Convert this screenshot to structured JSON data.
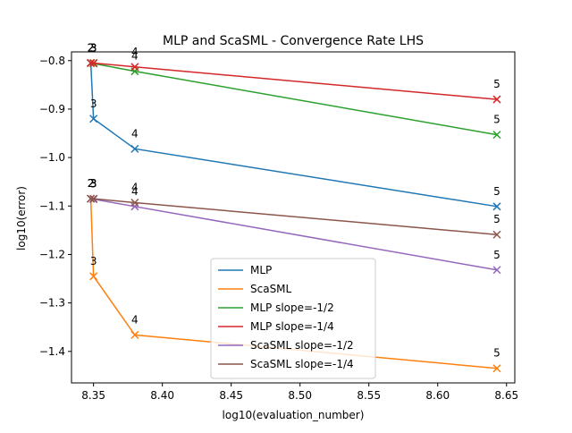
{
  "chart_data": {
    "type": "line",
    "title": "MLP and ScaSML - Convergence Rate LHS",
    "xlabel": "log10(evaluation_number)",
    "ylabel": "log10(error)",
    "xlim": [
      8.334,
      8.656
    ],
    "ylim": [
      -1.465,
      -0.782
    ],
    "xticks": [
      8.35,
      8.4,
      8.45,
      8.5,
      8.55,
      8.6,
      8.65
    ],
    "xtick_labels": [
      "8.35",
      "8.40",
      "8.45",
      "8.50",
      "8.55",
      "8.60",
      "8.65"
    ],
    "yticks": [
      -0.8,
      -0.9,
      -1.0,
      -1.1,
      -1.2,
      -1.3,
      -1.4
    ],
    "ytick_labels": [
      "−0.8",
      "−0.9",
      "−1.0",
      "−1.1",
      "−1.2",
      "−1.3",
      "−1.4"
    ],
    "grid": false,
    "legend_position": "bottom-center",
    "series": [
      {
        "name": "MLP",
        "color": "#1f77b4",
        "x": [
          8.348,
          8.35,
          8.38,
          8.643
        ],
        "y": [
          -0.805,
          -0.92,
          -0.982,
          -1.101
        ],
        "point_labels": [
          "2",
          "3",
          "4",
          "5"
        ]
      },
      {
        "name": "ScaSML",
        "color": "#ff7f0e",
        "x": [
          8.348,
          8.35,
          8.38,
          8.643
        ],
        "y": [
          -1.085,
          -1.245,
          -1.366,
          -1.435
        ],
        "point_labels": [
          "2",
          "3",
          "4",
          "5"
        ]
      },
      {
        "name": "MLP slope=-1/2",
        "color": "#2ca02c",
        "x": [
          8.348,
          8.35,
          8.38,
          8.643
        ],
        "y": [
          -0.805,
          -0.806,
          -0.822,
          -0.953
        ],
        "point_labels": [
          "2",
          "3",
          "4",
          "5"
        ]
      },
      {
        "name": "MLP slope=-1/4",
        "color": "#d62728",
        "x": [
          8.348,
          8.35,
          8.38,
          8.643
        ],
        "y": [
          -0.805,
          -0.805,
          -0.813,
          -0.88
        ],
        "point_labels": [
          "2",
          "3",
          "4",
          "5"
        ]
      },
      {
        "name": "ScaSML slope=-1/2",
        "color": "#9467bd",
        "x": [
          8.348,
          8.35,
          8.38,
          8.643
        ],
        "y": [
          -1.085,
          -1.086,
          -1.101,
          -1.232
        ],
        "point_labels": [
          "2",
          "3",
          "4",
          "5"
        ]
      },
      {
        "name": "ScaSML slope=-1/4",
        "color": "#8c564b",
        "x": [
          8.348,
          8.35,
          8.38,
          8.643
        ],
        "y": [
          -1.085,
          -1.085,
          -1.093,
          -1.159
        ],
        "point_labels": [
          "2",
          "3",
          "4",
          "5"
        ]
      }
    ]
  }
}
